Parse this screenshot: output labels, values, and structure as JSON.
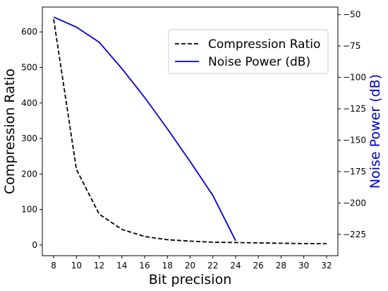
{
  "chart_data": {
    "type": "line",
    "xlabel": "Bit precision",
    "ylabel_left": "Compression Ratio",
    "ylabel_right": "Noise Power (dB)",
    "xlim": [
      7,
      33
    ],
    "ylim_left": [
      -30,
      670
    ],
    "ylim_right": [
      -242,
      -44
    ],
    "x_ticks": [
      "8",
      "10",
      "12",
      "14",
      "16",
      "18",
      "20",
      "22",
      "24",
      "26",
      "28",
      "30",
      "32"
    ],
    "y_ticks_left": [
      "0",
      "100",
      "200",
      "300",
      "400",
      "500",
      "600"
    ],
    "y_ticks_right": [
      "−50",
      "−75",
      "−100",
      "−125",
      "−150",
      "−175",
      "−200",
      "−225"
    ],
    "legend_position": "upper-right",
    "series": [
      {
        "name": "Compression Ratio",
        "axis": "left",
        "color": "#000000",
        "style": "dashed",
        "x": [
          8,
          10,
          12,
          14,
          16,
          18,
          20,
          22,
          24,
          26,
          28,
          30,
          32
        ],
        "y": [
          636,
          213,
          87,
          44,
          24,
          15,
          11,
          8,
          7,
          6,
          5,
          4,
          4
        ]
      },
      {
        "name": "Noise Power (dB)",
        "axis": "right",
        "color": "#0000cc",
        "style": "solid",
        "x": [
          8,
          10,
          12,
          14,
          16,
          18,
          20,
          22,
          24
        ],
        "y": [
          -52,
          -60,
          -72,
          -93,
          -116,
          -141,
          -167,
          -194,
          -230
        ]
      }
    ]
  }
}
